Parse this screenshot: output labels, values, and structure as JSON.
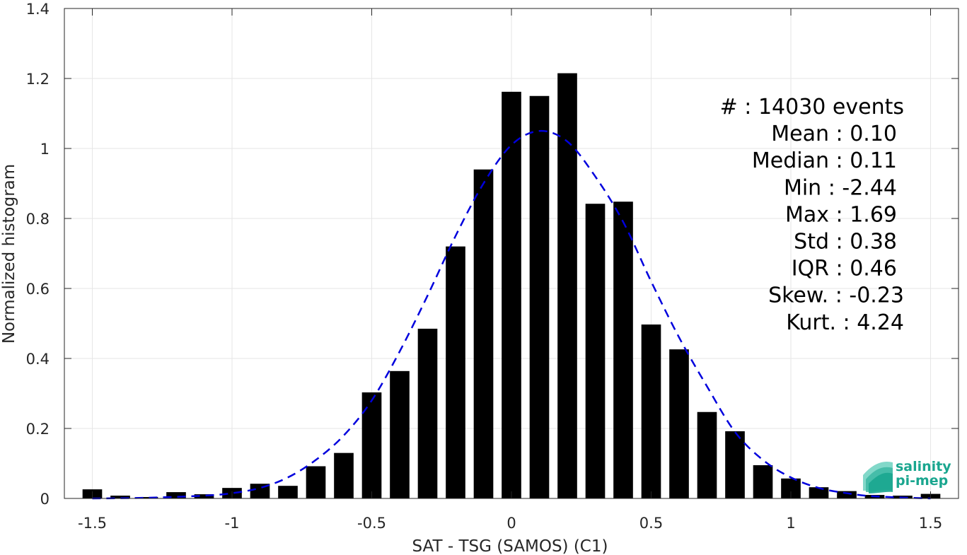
{
  "chart_data": {
    "type": "bar",
    "xlabel": "SAT - TSG (SAMOS) (C1)",
    "ylabel": "Normalized histogram",
    "xlim": [
      -1.6,
      1.6
    ],
    "ylim": [
      0,
      1.4
    ],
    "xticks": [
      -1.5,
      -1,
      -0.5,
      0,
      0.5,
      1,
      1.5
    ],
    "xtick_labels": [
      "-1.5",
      "-1",
      "-0.5",
      "0",
      "0.5",
      "1",
      "1.5"
    ],
    "yticks": [
      0,
      0.2,
      0.4,
      0.6,
      0.8,
      1,
      1.2,
      1.4
    ],
    "ytick_labels": [
      "0",
      "0.2",
      "0.4",
      "0.6",
      "0.8",
      "1",
      "1.2",
      "1.4"
    ],
    "grid": true,
    "bar_width": 0.07,
    "bar_color": "#000000",
    "bars": {
      "x": [
        -1.5,
        -1.4,
        -1.3,
        -1.2,
        -1.1,
        -1.0,
        -0.9,
        -0.8,
        -0.7,
        -0.6,
        -0.5,
        -0.4,
        -0.3,
        -0.2,
        -0.1,
        0.0,
        0.1,
        0.2,
        0.3,
        0.4,
        0.5,
        0.6,
        0.7,
        0.8,
        0.9,
        1.0,
        1.1,
        1.2,
        1.3,
        1.4,
        1.5
      ],
      "values": [
        0.026,
        0.008,
        0.004,
        0.018,
        0.012,
        0.03,
        0.042,
        0.036,
        0.092,
        0.13,
        0.303,
        0.364,
        0.485,
        0.72,
        0.94,
        1.162,
        1.15,
        1.215,
        0.842,
        0.848,
        0.497,
        0.426,
        0.247,
        0.192,
        0.095,
        0.057,
        0.032,
        0.021,
        0.01,
        0.008,
        0.013
      ]
    },
    "fit_curve": {
      "style": "dashed",
      "color": "#0000dd",
      "x": [
        -1.5,
        -1.3,
        -1.1,
        -1.0,
        -0.9,
        -0.8,
        -0.7,
        -0.6,
        -0.5,
        -0.4,
        -0.3,
        -0.2,
        -0.1,
        0.0,
        0.1,
        0.2,
        0.3,
        0.4,
        0.5,
        0.6,
        0.7,
        0.8,
        0.9,
        1.0,
        1.1,
        1.2,
        1.3,
        1.5
      ],
      "y": [
        0.0,
        0.002,
        0.008,
        0.015,
        0.03,
        0.06,
        0.11,
        0.18,
        0.28,
        0.42,
        0.58,
        0.75,
        0.9,
        1.01,
        1.05,
        1.02,
        0.92,
        0.79,
        0.62,
        0.46,
        0.32,
        0.19,
        0.11,
        0.06,
        0.03,
        0.015,
        0.006,
        0.0
      ]
    },
    "stats_box": [
      "#  : 14030 events",
      "Mean : 0.10",
      "Median : 0.11",
      "Min : -2.44",
      "Max : 1.69",
      "Std : 0.38",
      "IQR : 0.46",
      "Skew. : -0.23",
      "Kurt. : 4.24"
    ],
    "logo": {
      "line1": "salinity",
      "line2": "pi-mep",
      "color": "#1aa68f"
    }
  }
}
